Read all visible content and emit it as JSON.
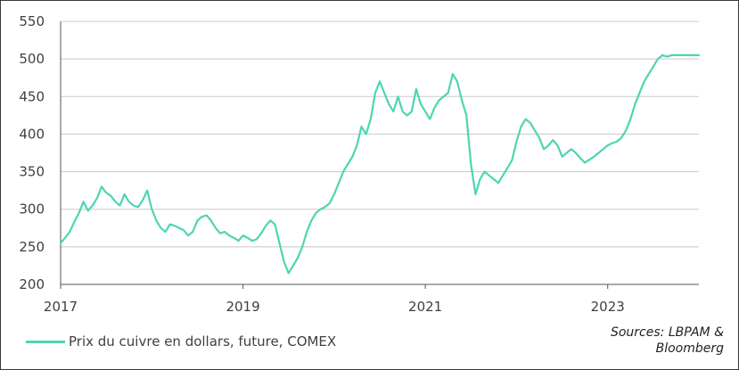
{
  "chart_data": {
    "type": "line",
    "title": "",
    "xlabel": "",
    "ylabel": "",
    "ylim": [
      200,
      550
    ],
    "yticks": [
      200,
      250,
      300,
      350,
      400,
      450,
      500,
      550
    ],
    "xlim": [
      2017,
      2024
    ],
    "xticks": [
      {
        "value": 2017,
        "label": "2017"
      },
      {
        "value": 2019,
        "label": "2019"
      },
      {
        "value": 2021,
        "label": "2021"
      },
      {
        "value": 2023,
        "label": "2023"
      }
    ],
    "grid": "horizontal",
    "legend_position": "bottom-left",
    "series": [
      {
        "name": "Prix du cuivre en dollars, future, COMEX",
        "color": "#4dd5b3",
        "x": [
          2017.0,
          2017.05,
          2017.1,
          2017.15,
          2017.2,
          2017.25,
          2017.3,
          2017.35,
          2017.4,
          2017.45,
          2017.5,
          2017.55,
          2017.6,
          2017.65,
          2017.7,
          2017.75,
          2017.8,
          2017.85,
          2017.9,
          2017.95,
          2018.0,
          2018.05,
          2018.1,
          2018.15,
          2018.2,
          2018.25,
          2018.3,
          2018.35,
          2018.4,
          2018.45,
          2018.5,
          2018.55,
          2018.6,
          2018.65,
          2018.7,
          2018.75,
          2018.8,
          2018.85,
          2018.9,
          2018.95,
          2019.0,
          2019.05,
          2019.1,
          2019.15,
          2019.2,
          2019.25,
          2019.3,
          2019.35,
          2019.4,
          2019.45,
          2019.5,
          2019.55,
          2019.6,
          2019.65,
          2019.7,
          2019.75,
          2019.8,
          2019.85,
          2019.9,
          2019.95,
          2020.0,
          2020.05,
          2020.1,
          2020.15,
          2020.2,
          2020.25,
          2020.3,
          2020.35,
          2020.4,
          2020.45,
          2020.5,
          2020.55,
          2020.6,
          2020.65,
          2020.7,
          2020.75,
          2020.8,
          2020.85,
          2020.9,
          2020.95,
          2021.0,
          2021.05,
          2021.1,
          2021.15,
          2021.2,
          2021.25,
          2021.3,
          2021.35,
          2021.4,
          2021.45,
          2021.5,
          2021.55,
          2021.6,
          2021.65,
          2021.7,
          2021.75,
          2021.8,
          2021.85,
          2021.9,
          2021.95,
          2022.0,
          2022.05,
          2022.1,
          2022.15,
          2022.2,
          2022.25,
          2022.3,
          2022.35,
          2022.4,
          2022.45,
          2022.5,
          2022.55,
          2022.6,
          2022.65,
          2022.7,
          2022.75,
          2022.8,
          2022.85,
          2022.9,
          2022.95,
          2023.0,
          2023.05,
          2023.1,
          2023.15,
          2023.2,
          2023.25,
          2023.3,
          2023.35,
          2023.4,
          2023.45,
          2023.5,
          2023.55,
          2023.6,
          2023.65,
          2023.7,
          2023.75,
          2023.8,
          2023.85,
          2023.9,
          2023.95,
          2024.0
        ],
        "values": [
          255,
          262,
          270,
          283,
          295,
          310,
          298,
          305,
          315,
          330,
          322,
          318,
          310,
          305,
          320,
          310,
          305,
          303,
          312,
          325,
          300,
          285,
          275,
          270,
          280,
          278,
          275,
          272,
          265,
          270,
          285,
          290,
          292,
          285,
          275,
          268,
          270,
          265,
          262,
          258,
          265,
          262,
          258,
          260,
          268,
          278,
          285,
          280,
          255,
          230,
          215,
          225,
          235,
          250,
          270,
          285,
          295,
          300,
          303,
          308,
          320,
          335,
          350,
          360,
          370,
          385,
          410,
          400,
          420,
          455,
          470,
          455,
          440,
          430,
          450,
          430,
          425,
          430,
          460,
          440,
          430,
          420,
          435,
          445,
          450,
          455,
          480,
          470,
          445,
          425,
          360,
          320,
          340,
          350,
          345,
          340,
          335,
          345,
          355,
          365,
          390,
          410,
          420,
          415,
          405,
          395,
          380,
          385,
          392,
          385,
          370,
          375,
          380,
          375,
          368,
          362,
          366,
          370,
          375,
          380,
          385,
          388,
          390,
          395,
          405,
          420,
          440,
          455,
          470,
          480,
          490,
          500,
          505,
          503,
          505,
          505,
          505,
          505,
          505,
          505,
          505
        ]
      }
    ]
  },
  "legend": {
    "label": "Prix du cuivre en dollars, future, COMEX"
  },
  "source": {
    "line1": "Sources: LBPAM &",
    "line2": "Bloomberg"
  }
}
